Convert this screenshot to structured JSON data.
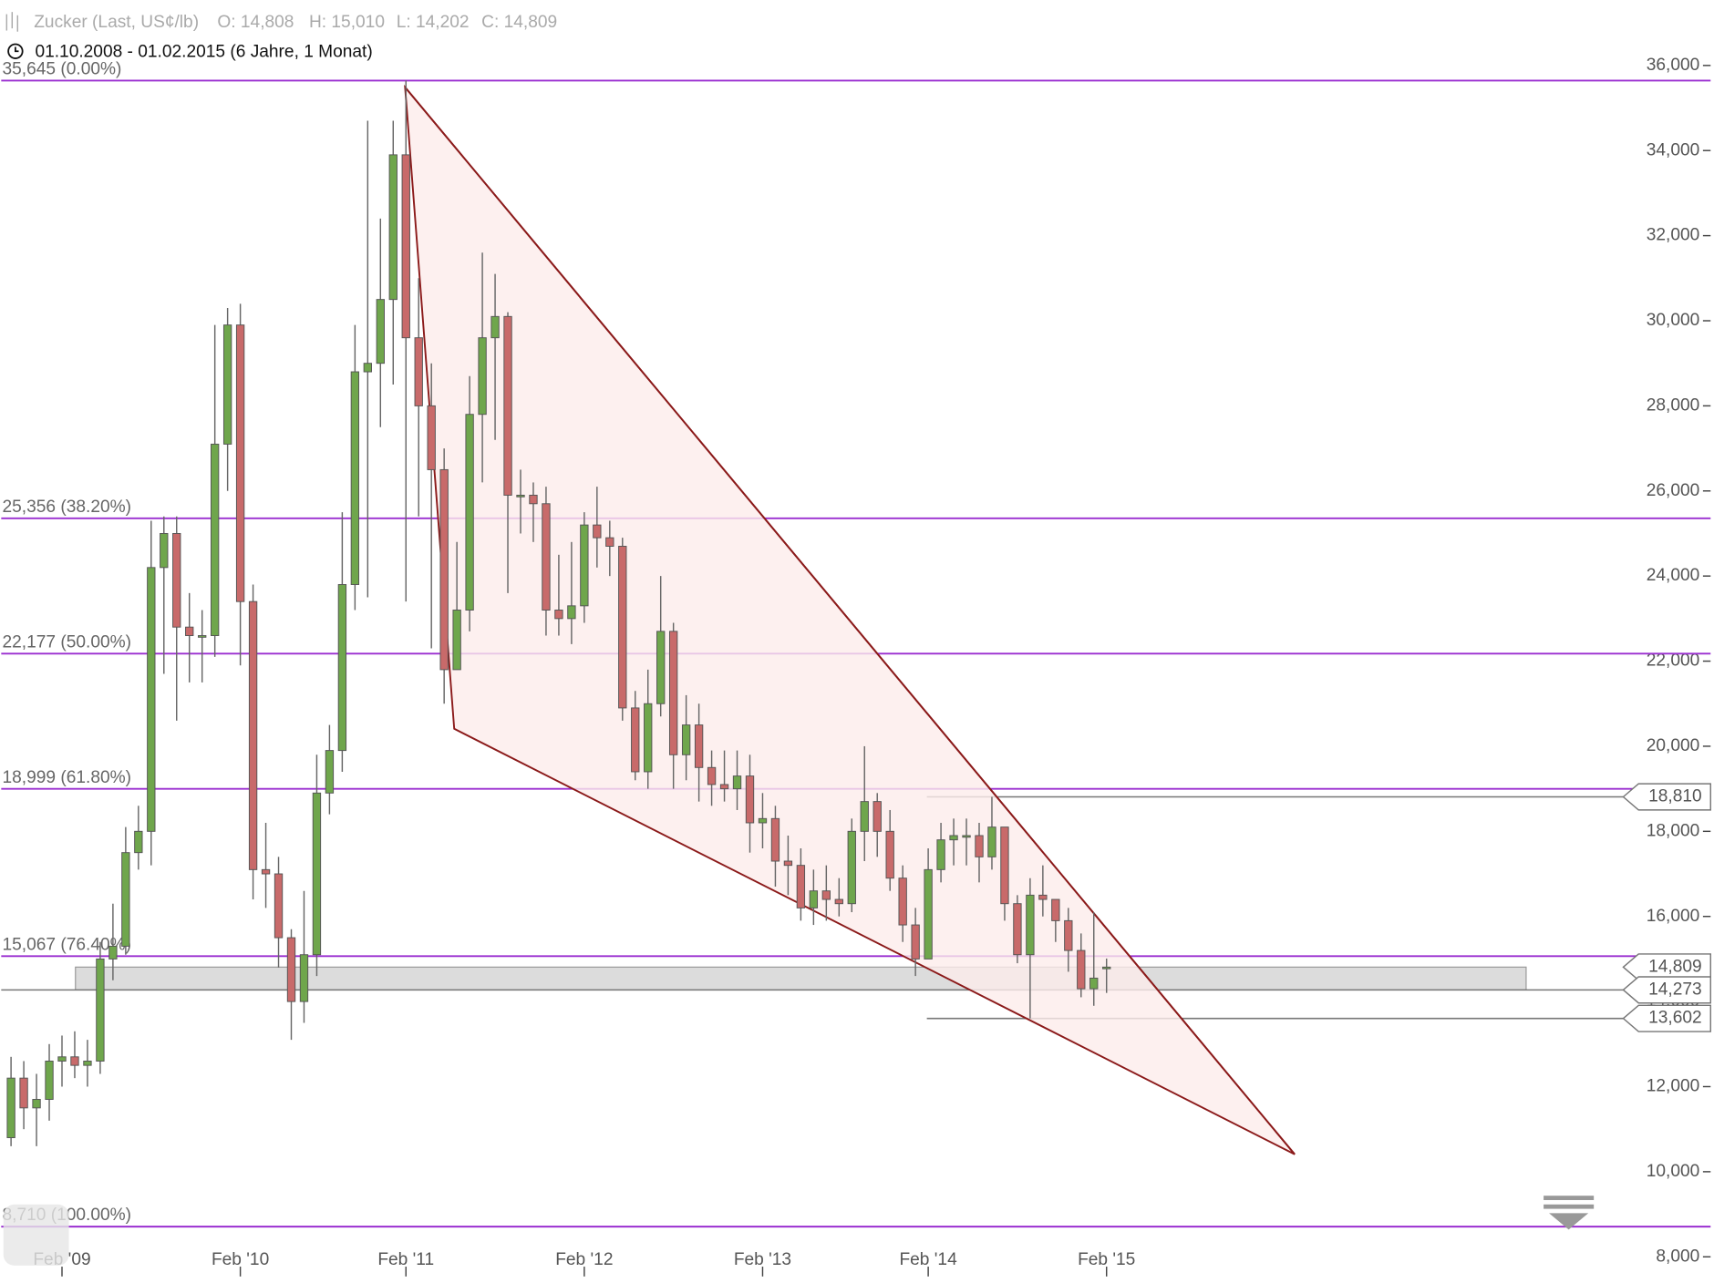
{
  "header": {
    "symbol": "Zucker (Last, US¢/lb)",
    "open": "O: 14,808",
    "high": "H: 15,010",
    "low": "L: 14,202",
    "close": "C: 14,809",
    "range": "01.10.2008 - 01.02.2015 (6 Jahre, 1 Monat)"
  },
  "chart_data": {
    "type": "candlestick",
    "categories": [
      null,
      null,
      null,
      null,
      "Feb '09",
      null,
      null,
      null,
      null,
      null,
      null,
      null,
      null,
      null,
      null,
      null,
      null,
      null,
      "Feb '10",
      null,
      null,
      null,
      null,
      null,
      null,
      null,
      null,
      null,
      null,
      null,
      null,
      "Feb '11",
      null,
      null,
      null,
      null,
      null,
      null,
      null,
      null,
      null,
      null,
      null,
      null,
      null,
      "Feb '12",
      null,
      null,
      null,
      null,
      null,
      null,
      null,
      null,
      null,
      null,
      null,
      null,
      null,
      "Feb '13",
      null,
      null,
      null,
      null,
      null,
      null,
      null,
      null,
      null,
      null,
      null,
      null,
      "Feb '14",
      null,
      null,
      null,
      null,
      null,
      null,
      null,
      null,
      null,
      null,
      null,
      null,
      null,
      "Feb '15"
    ],
    "open": [
      10.8,
      12.2,
      11.5,
      11.7,
      12.6,
      12.7,
      12.5,
      12.6,
      15.0,
      15.3,
      17.5,
      18.0,
      24.2,
      25.0,
      22.8,
      22.6,
      22.6,
      27.1,
      29.9,
      23.4,
      17.1,
      17.0,
      15.5,
      14.0,
      15.1,
      18.9,
      19.9,
      23.8,
      28.8,
      29.0,
      30.5,
      33.9,
      29.6,
      28.0,
      26.5,
      21.8,
      23.2,
      27.8,
      29.6,
      30.1,
      25.9,
      25.9,
      25.7,
      23.2,
      23.0,
      23.3,
      25.2,
      24.9,
      24.7,
      20.9,
      19.4,
      21.0,
      22.7,
      19.8,
      20.5,
      19.5,
      19.1,
      19.0,
      19.3,
      18.2,
      18.3,
      17.3,
      17.2,
      16.2,
      16.6,
      16.4,
      16.3,
      18.0,
      18.7,
      18.0,
      16.9,
      15.8,
      15.0,
      17.1,
      17.8,
      17.9,
      17.9,
      17.4,
      18.1,
      16.3,
      15.1,
      16.5,
      16.4,
      15.9,
      15.2,
      14.3,
      14.808
    ],
    "high": [
      12.7,
      12.6,
      12.3,
      13.0,
      13.2,
      13.3,
      13.1,
      15.4,
      16.3,
      18.1,
      18.6,
      25.3,
      25.4,
      25.4,
      23.6,
      23.2,
      29.9,
      30.3,
      30.4,
      23.8,
      18.2,
      17.4,
      15.7,
      16.6,
      19.8,
      20.5,
      25.5,
      29.9,
      34.7,
      32.4,
      34.7,
      35.645,
      31.0,
      29.0,
      27.0,
      24.8,
      28.7,
      31.6,
      31.1,
      30.2,
      26.5,
      26.2,
      26.1,
      24.5,
      24.8,
      25.5,
      26.1,
      25.3,
      24.9,
      21.3,
      21.8,
      24.0,
      22.9,
      21.2,
      21.0,
      19.9,
      19.9,
      19.9,
      19.8,
      18.9,
      18.6,
      17.9,
      17.6,
      17.1,
      17.2,
      16.9,
      18.3,
      20.0,
      18.9,
      18.5,
      17.2,
      16.2,
      17.6,
      18.2,
      18.3,
      18.3,
      18.2,
      18.81,
      18.0,
      16.5,
      16.9,
      17.2,
      16.4,
      16.2,
      15.6,
      16.1,
      15.01
    ],
    "low": [
      10.6,
      11.0,
      10.6,
      11.2,
      12.0,
      12.2,
      12.0,
      12.3,
      14.5,
      15.1,
      17.1,
      17.2,
      21.7,
      20.6,
      21.5,
      21.5,
      22.1,
      26.0,
      21.9,
      16.4,
      16.2,
      14.8,
      13.1,
      13.5,
      14.6,
      18.4,
      19.4,
      23.2,
      23.5,
      27.5,
      28.5,
      23.4,
      25.4,
      22.3,
      21.0,
      21.8,
      22.7,
      26.2,
      27.2,
      23.6,
      25.0,
      24.8,
      22.6,
      22.6,
      22.4,
      22.9,
      24.2,
      24.0,
      20.6,
      19.2,
      19.0,
      20.7,
      19.0,
      19.2,
      18.7,
      18.6,
      18.7,
      18.5,
      17.5,
      17.6,
      16.7,
      16.5,
      15.9,
      15.8,
      15.9,
      16.0,
      16.1,
      17.3,
      17.4,
      16.6,
      15.4,
      14.6,
      15.1,
      16.8,
      17.2,
      17.2,
      16.8,
      17.1,
      15.9,
      14.9,
      13.602,
      16.0,
      15.4,
      14.7,
      14.1,
      13.9,
      14.202
    ],
    "close": [
      12.2,
      11.5,
      11.7,
      12.6,
      12.7,
      12.5,
      12.6,
      15.0,
      15.3,
      17.5,
      18.0,
      24.2,
      25.0,
      22.8,
      22.6,
      22.6,
      27.1,
      29.9,
      23.4,
      17.1,
      17.0,
      15.5,
      14.0,
      15.1,
      18.9,
      19.9,
      23.8,
      28.8,
      29.0,
      30.5,
      33.9,
      29.6,
      28.0,
      26.5,
      21.8,
      23.2,
      27.8,
      29.6,
      30.1,
      25.9,
      25.9,
      25.7,
      23.2,
      23.0,
      23.3,
      25.2,
      24.9,
      24.7,
      20.9,
      19.4,
      21.0,
      22.7,
      19.8,
      20.5,
      19.5,
      19.1,
      19.0,
      19.3,
      18.2,
      18.3,
      17.3,
      17.2,
      16.2,
      16.6,
      16.4,
      16.3,
      18.0,
      18.7,
      18.0,
      16.9,
      15.8,
      15.0,
      17.1,
      17.8,
      17.9,
      17.9,
      17.4,
      18.1,
      16.3,
      15.1,
      16.5,
      16.4,
      15.9,
      15.2,
      14.3,
      14.55,
      14.809
    ],
    "up_color": "#6fa64c",
    "down_color": "#c86a6a",
    "ylim": [
      8,
      36
    ],
    "yticks": [
      {
        "value": 8,
        "label": "8,000"
      },
      {
        "value": 10,
        "label": "10,000"
      },
      {
        "value": 12,
        "label": "12,000"
      },
      {
        "value": 14,
        "label": "14,000"
      },
      {
        "value": 16,
        "label": "16,000"
      },
      {
        "value": 18,
        "label": "18,000"
      },
      {
        "value": 20,
        "label": "20,000"
      },
      {
        "value": 22,
        "label": "22,000"
      },
      {
        "value": 24,
        "label": "24,000"
      },
      {
        "value": 26,
        "label": "26,000"
      },
      {
        "value": 28,
        "label": "28,000"
      },
      {
        "value": 30,
        "label": "30,000"
      },
      {
        "value": 32,
        "label": "32,000"
      },
      {
        "value": 34,
        "label": "34,000"
      },
      {
        "value": 36,
        "label": "36,000"
      }
    ],
    "fib_color": "#9a2fd0",
    "fib_levels": [
      {
        "value": 35.645,
        "label": "35,645 (0.00%)"
      },
      {
        "value": 25.356,
        "label": "25,356 (38.20%)"
      },
      {
        "value": 22.177,
        "label": "22,177 (50.00%)"
      },
      {
        "value": 18.999,
        "label": "18,999 (61.80%)"
      },
      {
        "value": 15.067,
        "label": "15,067 (76.40%)"
      },
      {
        "value": 8.71,
        "label": "8,710 (100.00%)"
      }
    ],
    "price_tags": [
      {
        "value": 18.81,
        "label": "18,810"
      },
      {
        "value": 14.809,
        "label": "14,809"
      },
      {
        "value": 14.273,
        "label": "14,273"
      },
      {
        "value": 13.602,
        "label": "13,602"
      }
    ]
  }
}
